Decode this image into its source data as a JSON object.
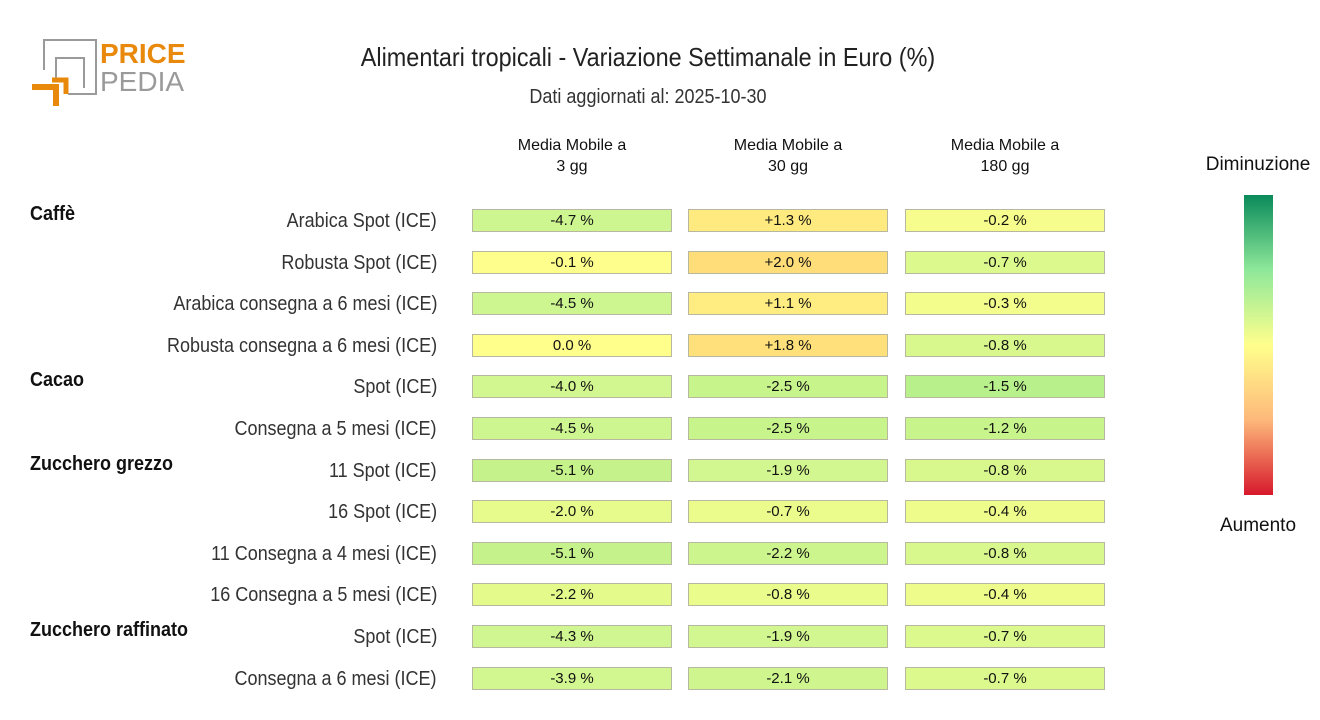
{
  "logo": {
    "line1": "PRICE",
    "line2": "PEDIA",
    "colors": {
      "orange": "#e8890c",
      "gray": "#9a9a9a"
    }
  },
  "chart_data": {
    "type": "table",
    "title": "Alimentari tropicali - Variazione Settimanale in Euro (%)",
    "subtitle": "Dati aggiornati al: 2025-10-30",
    "columns": [
      "Media Mobile a\n3 gg",
      "Media Mobile a\n30 gg",
      "Media Mobile a\n180 gg"
    ],
    "rows": [
      {
        "group": "Caffè",
        "label": "Arabica Spot (ICE)",
        "values": [
          "-4.7 %",
          "+1.3 %",
          "-0.2 %"
        ],
        "colors": [
          "#cdf690",
          "#ffea80",
          "#f6fd8c"
        ]
      },
      {
        "group": "",
        "label": "Robusta Spot (ICE)",
        "values": [
          "-0.1 %",
          "+2.0 %",
          "-0.7 %"
        ],
        "colors": [
          "#fefe8c",
          "#ffde7a",
          "#dcf98e"
        ]
      },
      {
        "group": "",
        "label": "Arabica consegna a 6 mesi (ICE)",
        "values": [
          "-4.5 %",
          "+1.1 %",
          "-0.3 %"
        ],
        "colors": [
          "#cdf690",
          "#ffed82",
          "#f2fd8c"
        ]
      },
      {
        "group": "",
        "label": "Robusta consegna a 6 mesi (ICE)",
        "values": [
          "0.0 %",
          "+1.8 %",
          "-0.8 %"
        ],
        "colors": [
          "#ffff8c",
          "#ffe07a",
          "#d8f88e"
        ]
      },
      {
        "group": "Cacao",
        "label": "Spot (ICE)",
        "values": [
          "-4.0 %",
          "-2.5 %",
          "-1.5 %"
        ],
        "colors": [
          "#d2f790",
          "#c8f48c",
          "#b8f08c"
        ]
      },
      {
        "group": "",
        "label": "Consegna a 5 mesi (ICE)",
        "values": [
          "-4.5 %",
          "-2.5 %",
          "-1.2 %"
        ],
        "colors": [
          "#cdf690",
          "#c8f48c",
          "#c8f48c"
        ]
      },
      {
        "group": "Zucchero grezzo",
        "label": "11 Spot (ICE)",
        "values": [
          "-5.1 %",
          "-1.9 %",
          "-0.8 %"
        ],
        "colors": [
          "#c5f28a",
          "#d2f690",
          "#d8f88e"
        ]
      },
      {
        "group": "",
        "label": "16 Spot (ICE)",
        "values": [
          "-2.0 %",
          "-0.7 %",
          "-0.4 %"
        ],
        "colors": [
          "#e6fb8c",
          "#ecfc8c",
          "#eefc8c"
        ]
      },
      {
        "group": "",
        "label": "11 Consegna a 4 mesi (ICE)",
        "values": [
          "-5.1 %",
          "-2.2 %",
          "-0.8 %"
        ],
        "colors": [
          "#c5f28a",
          "#cdf58e",
          "#d8f88e"
        ]
      },
      {
        "group": "",
        "label": "16 Consegna a 5 mesi (ICE)",
        "values": [
          "-2.2 %",
          "-0.8 %",
          "-0.4 %"
        ],
        "colors": [
          "#e4fb8c",
          "#eafc8c",
          "#eefc8c"
        ]
      },
      {
        "group": "Zucchero raffinato",
        "label": "Spot (ICE)",
        "values": [
          "-4.3 %",
          "-1.9 %",
          "-0.7 %"
        ],
        "colors": [
          "#cff690",
          "#d2f690",
          "#dcf98e"
        ]
      },
      {
        "group": "",
        "label": "Consegna a 6 mesi (ICE)",
        "values": [
          "-3.9 %",
          "-2.1 %",
          "-0.7 %"
        ],
        "colors": [
          "#d3f790",
          "#cff68e",
          "#dcf98e"
        ]
      }
    ],
    "colorbar": {
      "top_label": "Diminuzione",
      "bottom_label": "Aumento",
      "stops": [
        "#0a8a5a",
        "#8ee89a",
        "#ffff8c",
        "#fdb87a",
        "#d7192c"
      ]
    }
  }
}
